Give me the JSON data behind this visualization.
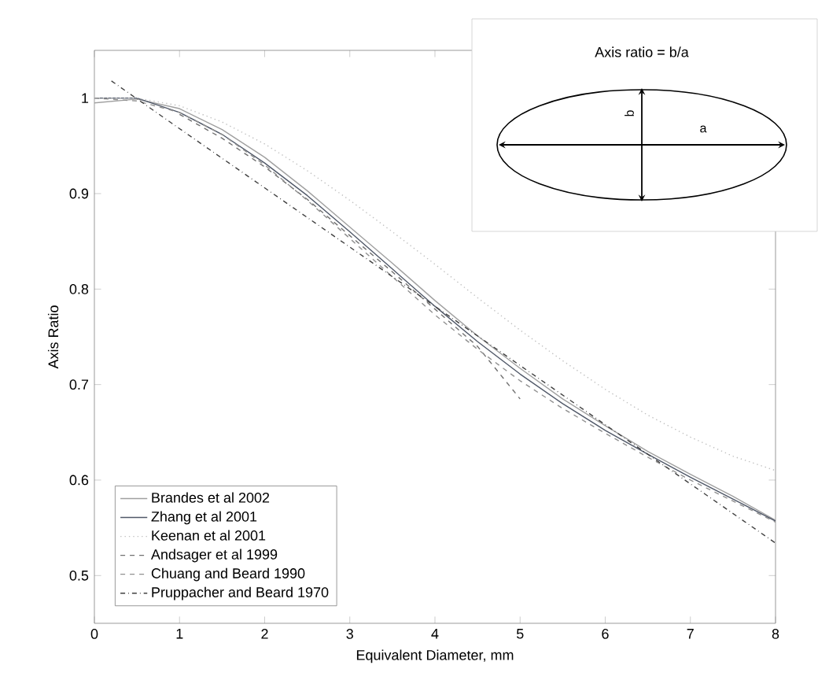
{
  "chart_data": {
    "type": "line",
    "xlabel": "Equivalent Diameter, mm",
    "ylabel": "Axis Ratio",
    "xlim": [
      0,
      8
    ],
    "ylim": [
      0.45,
      1.05
    ],
    "xticks": [
      0,
      1,
      2,
      3,
      4,
      5,
      6,
      7,
      8
    ],
    "yticks": [
      0.5,
      0.6,
      0.7,
      0.8,
      0.9,
      1
    ],
    "legend": "bottom left",
    "grid": false,
    "annotations": [
      "Axis ratio = b/a",
      "b",
      "a"
    ],
    "series": [
      {
        "name": "Brandes et al 2002",
        "color": "#a0a0a0",
        "line_style": "solid",
        "x": [
          0,
          0.5,
          1,
          1.5,
          2,
          2.5,
          3,
          3.5,
          4,
          4.5,
          5,
          5.5,
          6,
          6.5,
          7,
          7.5,
          8
        ],
        "values": [
          0.995,
          0.999,
          0.989,
          0.967,
          0.938,
          0.903,
          0.865,
          0.827,
          0.788,
          0.751,
          0.717,
          0.685,
          0.657,
          0.63,
          0.606,
          0.583,
          0.558
        ]
      },
      {
        "name": "Zhang et al 2001",
        "color": "#505868",
        "line_style": "solid",
        "x": [
          0,
          0.5,
          1,
          1.5,
          2,
          2.5,
          3,
          3.5,
          4,
          4.5,
          5,
          5.5,
          6,
          6.5,
          7,
          7.5,
          8
        ],
        "values": [
          1.0,
          1.0,
          0.985,
          0.962,
          0.932,
          0.898,
          0.86,
          0.821,
          0.782,
          0.745,
          0.711,
          0.68,
          0.652,
          0.627,
          0.603,
          0.58,
          0.557
        ]
      },
      {
        "name": "Keenan et al 2001",
        "color": "#c0c0c0",
        "line_style": "dotted",
        "x": [
          0,
          0.5,
          1,
          1.5,
          2,
          2.5,
          3,
          3.5,
          4,
          4.5,
          5,
          5.5,
          6,
          6.5,
          7,
          7.5,
          8
        ],
        "values": [
          1.0,
          1.0,
          0.992,
          0.975,
          0.952,
          0.924,
          0.893,
          0.86,
          0.826,
          0.791,
          0.757,
          0.725,
          0.695,
          0.668,
          0.645,
          0.625,
          0.61
        ]
      },
      {
        "name": "Andsager et al 1999",
        "color": "#707070",
        "line_style": "dashed",
        "x": [
          1,
          1.5,
          2,
          2.5,
          3,
          3.5,
          4,
          4.5,
          5
        ],
        "values": [
          0.983,
          0.958,
          0.928,
          0.894,
          0.856,
          0.818,
          0.779,
          0.74,
          0.685
        ]
      },
      {
        "name": "Chuang and Beard 1990",
        "color": "#909090",
        "line_style": "dashed",
        "x": [
          0,
          0.5,
          1,
          1.5,
          2,
          2.5,
          3,
          3.5,
          4,
          4.5,
          5,
          5.5,
          6,
          6.5,
          7,
          7.5,
          8
        ],
        "values": [
          1.0,
          0.997,
          0.985,
          0.962,
          0.93,
          0.893,
          0.853,
          0.813,
          0.773,
          0.737,
          0.704,
          0.675,
          0.649,
          0.624,
          0.6,
          0.578,
          0.556
        ]
      },
      {
        "name": "Pruppacher and Beard 1970",
        "color": "#404040",
        "line_style": "dashdot",
        "x": [
          0.2,
          1,
          2,
          3,
          4,
          5,
          6,
          7,
          8
        ],
        "values": [
          1.018,
          0.968,
          0.906,
          0.844,
          0.782,
          0.72,
          0.658,
          0.596,
          0.534
        ]
      }
    ]
  }
}
